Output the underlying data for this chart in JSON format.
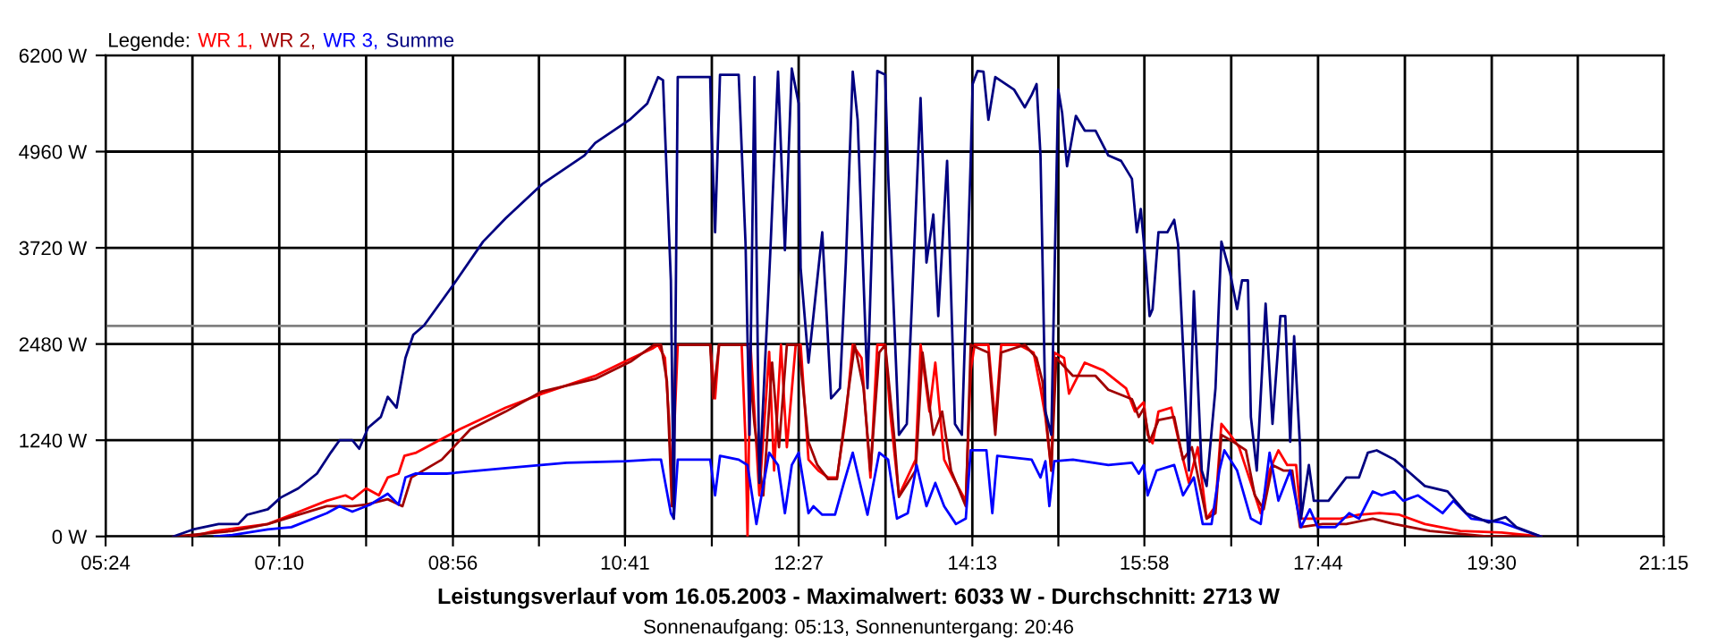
{
  "chart_data": {
    "type": "line",
    "title": "Leistungsverlauf vom 16.05.2003 - Maximalwert: 6033 W - Durchschnitt: 2713 W",
    "subtitle": "Sonnenaufgang: 05:13, Sonnenuntergang: 20:46",
    "legend_title": "Legende:",
    "legend": "top left",
    "grid": true,
    "marker": "none",
    "line_style": "solid",
    "xlim": [
      5.4,
      21.25
    ],
    "xticks": [
      {
        "value": 5.4,
        "label": "05:24"
      },
      {
        "value": 6.2833,
        "label": null
      },
      {
        "value": 7.1667,
        "label": "07:10"
      },
      {
        "value": 8.05,
        "label": null
      },
      {
        "value": 8.9333,
        "label": "08:56"
      },
      {
        "value": 9.8083,
        "label": null
      },
      {
        "value": 10.6833,
        "label": "10:41"
      },
      {
        "value": 11.5667,
        "label": null
      },
      {
        "value": 12.45,
        "label": "12:27"
      },
      {
        "value": 13.3333,
        "label": null
      },
      {
        "value": 14.2167,
        "label": "14:13"
      },
      {
        "value": 15.0917,
        "label": null
      },
      {
        "value": 15.9667,
        "label": "15:58"
      },
      {
        "value": 16.85,
        "label": null
      },
      {
        "value": 17.7333,
        "label": "17:44"
      },
      {
        "value": 18.6167,
        "label": null
      },
      {
        "value": 19.5,
        "label": "19:30"
      },
      {
        "value": 20.375,
        "label": null
      },
      {
        "value": 21.25,
        "label": "21:15"
      }
    ],
    "ylim": [
      0,
      6200
    ],
    "yticks": [
      {
        "value": 0,
        "label": "0 W"
      },
      {
        "value": 1240,
        "label": "1240 W"
      },
      {
        "value": 2480,
        "label": "2480 W"
      },
      {
        "value": 3720,
        "label": "3720 W"
      },
      {
        "value": 4960,
        "label": "4960 W"
      },
      {
        "value": 6200,
        "label": "6200 W"
      }
    ],
    "ref_lines": [
      {
        "axis": "y",
        "value": 2713,
        "color": "#808080"
      }
    ],
    "series": [
      {
        "name": "WR 1,",
        "color": "#ff0000",
        "x": [
          6.27,
          6.51,
          7.05,
          7.29,
          7.65,
          7.84,
          7.91,
          8.05,
          8.18,
          8.27,
          8.38,
          8.44,
          8.56,
          9.0,
          9.47,
          9.84,
          10.38,
          10.69,
          10.96,
          11.02,
          11.09,
          11.13,
          11.16,
          11.22,
          11.55,
          11.6,
          11.64,
          11.87,
          11.91,
          11.93,
          11.96,
          12.05,
          12.15,
          12.2,
          12.27,
          12.33,
          12.42,
          12.47,
          12.55,
          12.65,
          12.75,
          12.84,
          12.93,
          13.0,
          13.09,
          13.18,
          13.25,
          13.33,
          13.38,
          13.47,
          13.64,
          13.69,
          13.78,
          13.84,
          13.93,
          14.02,
          14.15,
          14.2,
          14.24,
          14.38,
          14.45,
          14.51,
          14.69,
          14.84,
          14.91,
          14.96,
          15.02,
          15.05,
          15.15,
          15.2,
          15.36,
          15.55,
          15.78,
          15.87,
          15.96,
          16.0,
          16.05,
          16.11,
          16.24,
          16.33,
          16.42,
          16.51,
          16.6,
          16.69,
          16.75,
          16.84,
          16.93,
          17.05,
          17.15,
          17.24,
          17.33,
          17.42,
          17.51,
          17.56,
          17.96,
          18.15,
          18.36,
          18.56,
          18.82,
          19.18,
          19.6,
          20.0
        ],
        "values": [
          0,
          70,
          160,
          280,
          460,
          530,
          480,
          620,
          530,
          760,
          810,
          1040,
          1080,
          1380,
          1660,
          1840,
          2070,
          2260,
          2420,
          2470,
          2300,
          1540,
          620,
          2470,
          2470,
          1780,
          2470,
          2470,
          1220,
          0,
          2470,
          530,
          2380,
          850,
          2470,
          1150,
          2470,
          2470,
          990,
          850,
          760,
          760,
          1540,
          2470,
          2300,
          760,
          2470,
          2470,
          1610,
          530,
          990,
          2470,
          1610,
          2240,
          990,
          760,
          460,
          2140,
          2470,
          2470,
          1450,
          2470,
          2470,
          2370,
          1910,
          1540,
          850,
          2370,
          2300,
          1840,
          2240,
          2140,
          1910,
          1610,
          1730,
          1310,
          1200,
          1610,
          1660,
          1150,
          690,
          1150,
          230,
          390,
          1450,
          1310,
          1150,
          690,
          300,
          850,
          1110,
          920,
          920,
          230,
          230,
          280,
          300,
          280,
          160,
          70,
          50,
          0
        ]
      },
      {
        "name": "WR 2,",
        "color": "#a00000",
        "x": [
          6.09,
          6.69,
          7.05,
          7.65,
          7.91,
          8.05,
          8.27,
          8.42,
          8.51,
          8.82,
          9.11,
          9.47,
          9.84,
          10.38,
          10.75,
          10.98,
          11.05,
          11.11,
          11.15,
          11.16,
          11.2,
          11.55,
          11.58,
          11.64,
          11.93,
          12.0,
          12.09,
          12.18,
          12.25,
          12.33,
          12.45,
          12.55,
          12.64,
          12.75,
          12.84,
          12.96,
          13.02,
          13.11,
          13.18,
          13.27,
          13.33,
          13.42,
          13.47,
          13.64,
          13.71,
          13.82,
          13.91,
          14.0,
          14.15,
          14.2,
          14.38,
          14.45,
          14.51,
          14.75,
          14.87,
          14.93,
          15.02,
          15.07,
          15.24,
          15.47,
          15.6,
          15.84,
          15.91,
          15.96,
          16.02,
          16.11,
          16.27,
          16.36,
          16.45,
          16.6,
          16.69,
          16.75,
          16.87,
          17.0,
          17.09,
          17.18,
          17.27,
          17.38,
          17.47,
          17.55,
          17.78,
          18.02,
          18.29,
          18.51,
          18.87,
          19.47,
          20.0
        ],
        "values": [
          0,
          70,
          160,
          390,
          390,
          410,
          480,
          390,
          760,
          990,
          1380,
          1610,
          1870,
          2030,
          2260,
          2470,
          2470,
          2000,
          760,
          390,
          2470,
          2470,
          1780,
          2470,
          2470,
          1450,
          530,
          2240,
          1150,
          2470,
          2470,
          1220,
          920,
          740,
          740,
          1910,
          2470,
          1910,
          850,
          2370,
          2470,
          1310,
          510,
          850,
          2370,
          1310,
          1610,
          850,
          390,
          2470,
          2370,
          1310,
          2370,
          2470,
          2300,
          2000,
          850,
          2300,
          2070,
          2070,
          1890,
          1770,
          1540,
          1650,
          1220,
          1500,
          1540,
          990,
          1150,
          230,
          300,
          1310,
          1220,
          1110,
          530,
          350,
          920,
          850,
          850,
          120,
          160,
          160,
          230,
          160,
          70,
          0,
          0
        ]
      },
      {
        "name": "WR 3,",
        "color": "#0000ff",
        "x": [
          6.51,
          6.69,
          7.05,
          7.29,
          7.65,
          7.78,
          7.91,
          8.09,
          8.27,
          8.38,
          8.45,
          8.55,
          8.87,
          9.47,
          10.09,
          10.69,
          10.96,
          11.05,
          11.15,
          11.18,
          11.22,
          11.55,
          11.6,
          11.65,
          11.84,
          11.93,
          12.02,
          12.15,
          12.24,
          12.31,
          12.38,
          12.45,
          12.55,
          12.6,
          12.69,
          12.82,
          12.91,
          13.0,
          13.15,
          13.27,
          13.36,
          13.45,
          13.56,
          13.65,
          13.75,
          13.84,
          13.93,
          14.05,
          14.15,
          14.2,
          14.36,
          14.42,
          14.47,
          14.82,
          14.91,
          14.96,
          15.0,
          15.05,
          15.24,
          15.6,
          15.84,
          15.91,
          15.96,
          16.0,
          16.09,
          16.27,
          16.36,
          16.47,
          16.56,
          16.65,
          16.73,
          16.78,
          16.91,
          17.05,
          17.15,
          17.24,
          17.33,
          17.45,
          17.56,
          17.65,
          17.73,
          17.91,
          18.05,
          18.15,
          18.29,
          18.38,
          18.51,
          18.6,
          18.75,
          19.0,
          19.11,
          19.29,
          19.6,
          19.84,
          20.0
        ],
        "values": [
          0,
          20,
          90,
          120,
          300,
          390,
          320,
          410,
          550,
          410,
          760,
          810,
          810,
          880,
          950,
          970,
          990,
          990,
          300,
          230,
          990,
          990,
          530,
          1040,
          990,
          920,
          160,
          1080,
          920,
          300,
          920,
          1080,
          300,
          390,
          280,
          280,
          690,
          1080,
          280,
          1080,
          990,
          230,
          300,
          920,
          390,
          690,
          390,
          160,
          230,
          1110,
          1110,
          300,
          1040,
          990,
          760,
          970,
          390,
          970,
          990,
          920,
          950,
          810,
          920,
          530,
          850,
          920,
          530,
          760,
          160,
          160,
          850,
          1110,
          850,
          230,
          160,
          1080,
          460,
          850,
          120,
          350,
          120,
          120,
          300,
          230,
          580,
          530,
          580,
          460,
          530,
          300,
          460,
          230,
          180,
          70,
          0
        ]
      },
      {
        "name": "Summe",
        "color": "#000080",
        "x": [
          6.09,
          6.29,
          6.55,
          6.75,
          6.84,
          7.05,
          7.18,
          7.36,
          7.55,
          7.69,
          7.78,
          7.91,
          7.98,
          8.07,
          8.2,
          8.27,
          8.36,
          8.45,
          8.53,
          8.64,
          8.93,
          9.24,
          9.47,
          9.84,
          10.27,
          10.38,
          10.73,
          10.91,
          11.02,
          11.07,
          11.15,
          11.18,
          11.22,
          11.55,
          11.56,
          11.6,
          11.65,
          11.84,
          11.91,
          11.95,
          12.0,
          12.05,
          12.16,
          12.24,
          12.31,
          12.38,
          12.45,
          12.47,
          12.55,
          12.69,
          12.78,
          12.87,
          12.93,
          13.0,
          13.05,
          13.15,
          13.25,
          13.33,
          13.36,
          13.47,
          13.55,
          13.69,
          13.75,
          13.82,
          13.87,
          13.96,
          14.04,
          14.11,
          14.2,
          14.22,
          14.27,
          14.33,
          14.38,
          14.45,
          14.64,
          14.75,
          14.82,
          14.87,
          14.91,
          14.96,
          15.02,
          15.09,
          15.13,
          15.18,
          15.27,
          15.36,
          15.47,
          15.6,
          15.73,
          15.84,
          15.89,
          15.93,
          15.98,
          16.02,
          16.05,
          16.11,
          16.2,
          16.27,
          16.31,
          16.38,
          16.42,
          16.47,
          16.55,
          16.6,
          16.69,
          16.75,
          16.84,
          16.91,
          16.96,
          17.02,
          17.05,
          17.11,
          17.2,
          17.27,
          17.35,
          17.4,
          17.45,
          17.49,
          17.55,
          17.56,
          17.64,
          17.69,
          17.84,
          18.02,
          18.15,
          18.24,
          18.33,
          18.51,
          18.64,
          18.82,
          19.05,
          19.24,
          19.47,
          19.64,
          19.75,
          20.0
        ],
        "values": [
          0,
          90,
          160,
          160,
          280,
          350,
          500,
          620,
          810,
          1080,
          1240,
          1240,
          1130,
          1400,
          1540,
          1800,
          1660,
          2300,
          2600,
          2720,
          3230,
          3800,
          4100,
          4540,
          4910,
          5070,
          5370,
          5580,
          5920,
          5880,
          3300,
          230,
          5920,
          5920,
          5370,
          3920,
          5950,
          5950,
          3760,
          1310,
          5920,
          690,
          3620,
          5990,
          3690,
          6030,
          5580,
          3460,
          2240,
          3920,
          1780,
          1910,
          3530,
          5990,
          5370,
          1910,
          6000,
          5950,
          4680,
          1310,
          1450,
          5650,
          3530,
          4150,
          2840,
          4840,
          1450,
          1310,
          4840,
          5830,
          6000,
          5990,
          5370,
          5920,
          5760,
          5530,
          5690,
          5830,
          4910,
          1610,
          1310,
          5760,
          5460,
          4770,
          5420,
          5230,
          5230,
          4910,
          4840,
          4610,
          3920,
          4220,
          3530,
          2840,
          2930,
          3920,
          3920,
          4080,
          3760,
          1910,
          850,
          3160,
          850,
          650,
          1910,
          3800,
          3390,
          2930,
          3300,
          3300,
          1540,
          850,
          3000,
          1450,
          2840,
          2840,
          1220,
          2580,
          1150,
          230,
          920,
          460,
          460,
          760,
          760,
          1080,
          1110,
          990,
          850,
          650,
          580,
          300,
          180,
          250,
          120,
          0
        ]
      }
    ]
  }
}
